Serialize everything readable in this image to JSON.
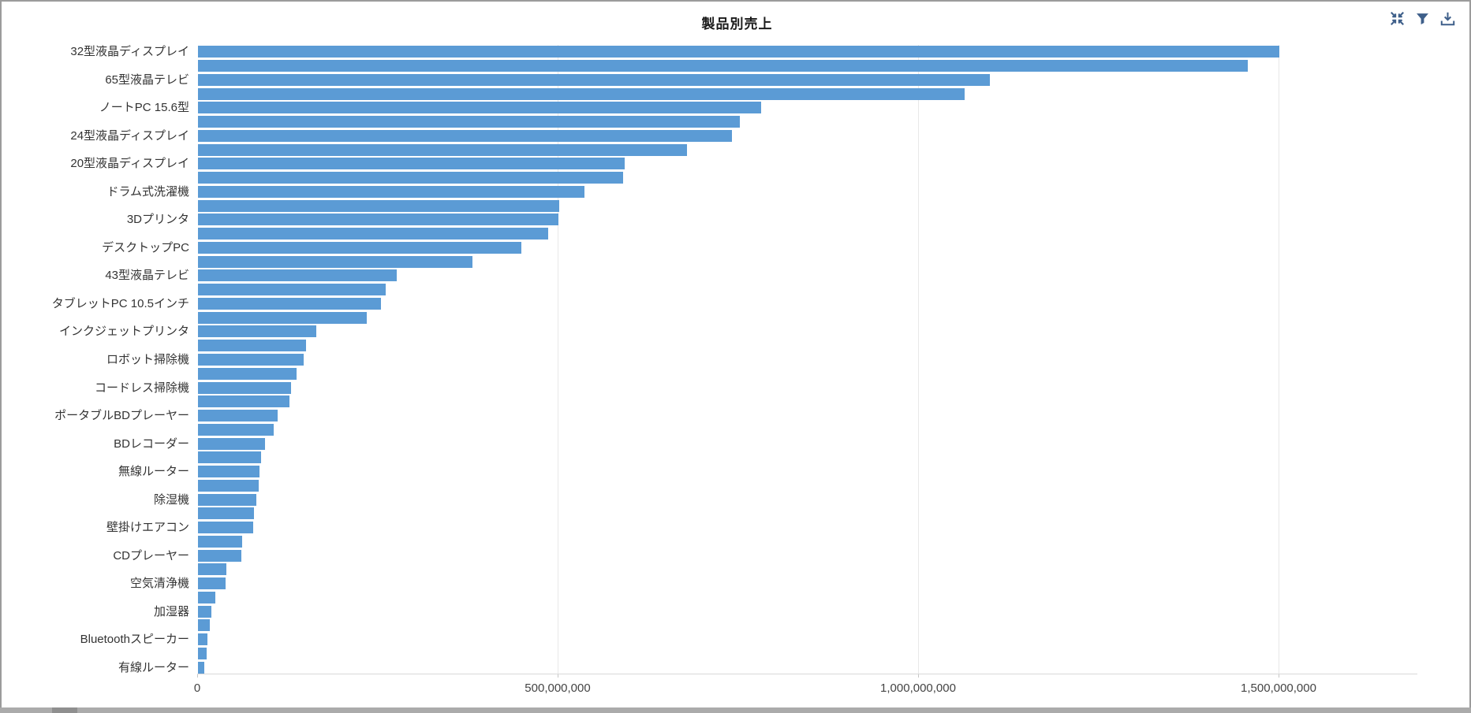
{
  "page": {
    "title": "製品別売上"
  },
  "toolbar": {
    "icons": [
      {
        "name": "collapse-icon",
        "meaning": "fit / collapse chart"
      },
      {
        "name": "filter-icon",
        "meaning": "filter data"
      },
      {
        "name": "download-icon",
        "meaning": "download chart"
      }
    ],
    "icon_color": "#3e5f8a"
  },
  "colors": {
    "bar": "#5b9bd5",
    "gridline": "#e8e8e8",
    "axis_line": "#d9d9d9",
    "frame_border": "#9b9b9b",
    "scrollbar": "#ababab",
    "title_text": "#1a1a1a",
    "tick_text": "#444444",
    "category_text": "#333333"
  },
  "chart_data": {
    "type": "bar",
    "orientation": "horizontal",
    "title": "製品別売上",
    "xlabel": "",
    "ylabel": "",
    "xlim": [
      0,
      1692000000
    ],
    "x_ticks": [
      0,
      500000000,
      1000000000,
      1500000000
    ],
    "x_tick_labels": [
      "0",
      "500,000,000",
      "1,000,000,000",
      "1,500,000,000"
    ],
    "grid": true,
    "legend": "none",
    "axis_label_note": "45 sorted categories; only every other category label is displayed on the y-axis",
    "bars": [
      {
        "label": "32型液晶ディスプレイ",
        "value": 1500000000
      },
      {
        "label": "",
        "value": 1456000000
      },
      {
        "label": "65型液晶テレビ",
        "value": 1099000000
      },
      {
        "label": "",
        "value": 1064000000
      },
      {
        "label": "ノートPC 15.6型",
        "value": 781000000
      },
      {
        "label": "",
        "value": 752000000
      },
      {
        "label": "24型液晶ディスプレイ",
        "value": 741000000
      },
      {
        "label": "",
        "value": 678000000
      },
      {
        "label": "20型液晶ディスプレイ",
        "value": 592000000
      },
      {
        "label": "",
        "value": 590000000
      },
      {
        "label": "ドラム式洗濯機",
        "value": 536000000
      },
      {
        "label": "",
        "value": 501000000
      },
      {
        "label": "3Dプリンタ",
        "value": 500000000
      },
      {
        "label": "",
        "value": 486000000
      },
      {
        "label": "デスクトップPC",
        "value": 449000000
      },
      {
        "label": "",
        "value": 381000000
      },
      {
        "label": "43型液晶テレビ",
        "value": 276000000
      },
      {
        "label": "",
        "value": 260000000
      },
      {
        "label": "タブレットPC 10.5インチ",
        "value": 254000000
      },
      {
        "label": "",
        "value": 234000000
      },
      {
        "label": "インクジェットプリンタ",
        "value": 164000000
      },
      {
        "label": "",
        "value": 150000000
      },
      {
        "label": "ロボット掃除機",
        "value": 147000000
      },
      {
        "label": "",
        "value": 137000000
      },
      {
        "label": "コードレス掃除機",
        "value": 129000000
      },
      {
        "label": "",
        "value": 127000000
      },
      {
        "label": "ポータブルBDプレーヤー",
        "value": 110000000
      },
      {
        "label": "",
        "value": 105000000
      },
      {
        "label": "BDレコーダー",
        "value": 93000000
      },
      {
        "label": "",
        "value": 87000000
      },
      {
        "label": "無線ルーター",
        "value": 85000000
      },
      {
        "label": "",
        "value": 84000000
      },
      {
        "label": "除湿機",
        "value": 81000000
      },
      {
        "label": "",
        "value": 77500000
      },
      {
        "label": "壁掛けエアコン",
        "value": 76500000
      },
      {
        "label": "",
        "value": 61000000
      },
      {
        "label": "CDプレーヤー",
        "value": 60000000
      },
      {
        "label": "",
        "value": 39000000
      },
      {
        "label": "空気清浄機",
        "value": 38000000
      },
      {
        "label": "",
        "value": 24000000
      },
      {
        "label": "加湿器",
        "value": 19000000
      },
      {
        "label": "",
        "value": 16000000
      },
      {
        "label": "Bluetoothスピーカー",
        "value": 13000000
      },
      {
        "label": "",
        "value": 12500000
      },
      {
        "label": "有線ルーター",
        "value": 8500000
      }
    ]
  }
}
